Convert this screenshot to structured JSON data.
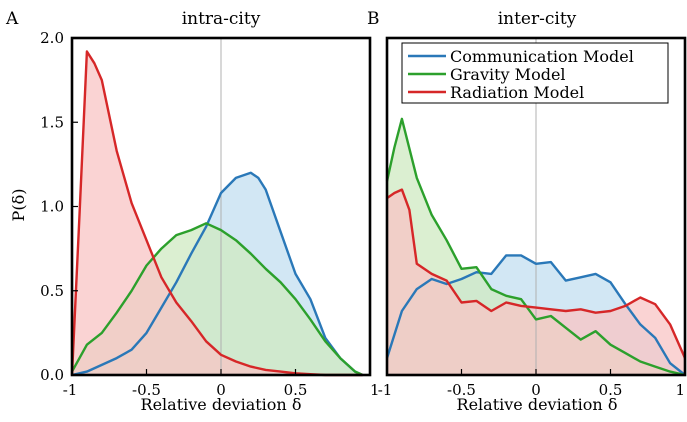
{
  "chart_data": [
    {
      "type": "area",
      "panel_label": "A",
      "title": "intra-city",
      "xlabel": "Relative deviation δ",
      "ylabel": "P(δ)",
      "xlim": [
        -1,
        1
      ],
      "ylim": [
        0,
        2
      ],
      "xticks": [
        "-1",
        "-0.5",
        "0",
        "0.5",
        "1"
      ],
      "yticks": [
        "0.0",
        "0.5",
        "1.0",
        "1.5",
        "2.0"
      ],
      "grid": false,
      "zero_line": true,
      "legend": null,
      "series": [
        {
          "color": "#2a78b8",
          "fill": "#c3dff0",
          "x": [
            -1.0,
            -0.9,
            -0.8,
            -0.7,
            -0.6,
            -0.5,
            -0.4,
            -0.3,
            -0.2,
            -0.1,
            0.0,
            0.1,
            0.2,
            0.25,
            0.3,
            0.4,
            0.5,
            0.6,
            0.7,
            0.8,
            0.9,
            0.95
          ],
          "y": [
            0.0,
            0.02,
            0.06,
            0.1,
            0.15,
            0.25,
            0.4,
            0.55,
            0.72,
            0.88,
            1.08,
            1.17,
            1.2,
            1.17,
            1.1,
            0.85,
            0.6,
            0.45,
            0.22,
            0.1,
            0.02,
            0.0
          ]
        },
        {
          "color": "#2ca02c",
          "fill": "#cfeac2",
          "x": [
            -1.0,
            -0.95,
            -0.9,
            -0.8,
            -0.7,
            -0.6,
            -0.5,
            -0.4,
            -0.3,
            -0.2,
            -0.1,
            0.0,
            0.1,
            0.2,
            0.3,
            0.4,
            0.5,
            0.6,
            0.7,
            0.8,
            0.9,
            0.95
          ],
          "y": [
            0.02,
            0.1,
            0.18,
            0.25,
            0.37,
            0.5,
            0.65,
            0.75,
            0.83,
            0.86,
            0.9,
            0.86,
            0.8,
            0.72,
            0.63,
            0.55,
            0.45,
            0.33,
            0.2,
            0.1,
            0.02,
            0.0
          ]
        },
        {
          "color": "#d62728",
          "fill": "#f8c4c4",
          "x": [
            -1.0,
            -0.95,
            -0.9,
            -0.85,
            -0.8,
            -0.7,
            -0.6,
            -0.5,
            -0.4,
            -0.3,
            -0.2,
            -0.1,
            0.0,
            0.1,
            0.2,
            0.3,
            0.4,
            0.5,
            0.6,
            0.7,
            0.8,
            0.9,
            0.95
          ],
          "y": [
            0.0,
            0.95,
            1.92,
            1.85,
            1.75,
            1.33,
            1.02,
            0.8,
            0.58,
            0.43,
            0.32,
            0.2,
            0.12,
            0.08,
            0.05,
            0.03,
            0.02,
            0.01,
            0.005,
            0.0,
            0.0,
            0.0,
            0.0
          ]
        }
      ]
    },
    {
      "type": "area",
      "panel_label": "B",
      "title": "inter-city",
      "xlabel": "Relative deviation δ",
      "ylabel": "",
      "xlim": [
        -1,
        1
      ],
      "ylim": [
        0,
        2
      ],
      "xticks": [
        "-1",
        "-0.5",
        "0",
        "0.5",
        "1"
      ],
      "yticks": [],
      "grid": false,
      "zero_line": true,
      "legend": "top-right",
      "series": [
        {
          "name": "Communication Model",
          "color": "#2a78b8",
          "fill": "#c3dff0",
          "x": [
            -1.0,
            -0.9,
            -0.8,
            -0.7,
            -0.6,
            -0.5,
            -0.4,
            -0.3,
            -0.2,
            -0.1,
            0.0,
            0.1,
            0.2,
            0.3,
            0.4,
            0.5,
            0.6,
            0.7,
            0.8,
            0.9,
            1.0
          ],
          "y": [
            0.1,
            0.38,
            0.51,
            0.57,
            0.54,
            0.57,
            0.61,
            0.6,
            0.71,
            0.71,
            0.66,
            0.67,
            0.56,
            0.58,
            0.6,
            0.55,
            0.42,
            0.3,
            0.22,
            0.07,
            0.0
          ]
        },
        {
          "name": "Gravity Model",
          "color": "#2ca02c",
          "fill": "#cfeac2",
          "x": [
            -1.0,
            -0.95,
            -0.9,
            -0.8,
            -0.7,
            -0.6,
            -0.5,
            -0.4,
            -0.3,
            -0.2,
            -0.1,
            0.0,
            0.1,
            0.2,
            0.3,
            0.4,
            0.5,
            0.6,
            0.7,
            0.8,
            0.9,
            1.0
          ],
          "y": [
            1.15,
            1.35,
            1.52,
            1.17,
            0.95,
            0.8,
            0.63,
            0.64,
            0.51,
            0.47,
            0.45,
            0.33,
            0.35,
            0.28,
            0.21,
            0.26,
            0.18,
            0.13,
            0.08,
            0.05,
            0.02,
            0.0
          ]
        },
        {
          "name": "Radiation Model",
          "color": "#d62728",
          "fill": "#f8c4c4",
          "x": [
            -1.0,
            -0.95,
            -0.9,
            -0.85,
            -0.8,
            -0.7,
            -0.6,
            -0.5,
            -0.4,
            -0.3,
            -0.2,
            -0.1,
            0.0,
            0.1,
            0.2,
            0.3,
            0.4,
            0.5,
            0.6,
            0.7,
            0.8,
            0.9,
            1.0
          ],
          "y": [
            1.05,
            1.08,
            1.1,
            0.98,
            0.66,
            0.6,
            0.56,
            0.43,
            0.44,
            0.38,
            0.43,
            0.41,
            0.4,
            0.39,
            0.38,
            0.39,
            0.37,
            0.38,
            0.41,
            0.46,
            0.42,
            0.3,
            0.1
          ]
        }
      ]
    }
  ]
}
